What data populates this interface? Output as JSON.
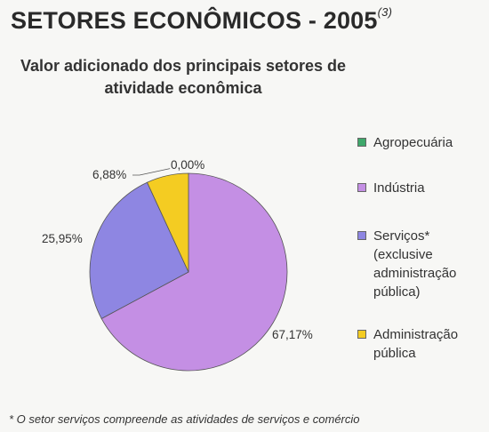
{
  "header": {
    "title": "SETORES ECONÔMICOS - 2005",
    "title_note": "(3)",
    "subtitle_line1": "Valor adicionado dos principais setores de",
    "subtitle_line2": "atividade econômica"
  },
  "chart_data": {
    "type": "pie",
    "categories": [
      "Agropecuária",
      "Indústria",
      "Serviços* (exclusive administração pública)",
      "Administração pública"
    ],
    "values": [
      0.0,
      67.17,
      25.95,
      6.88
    ],
    "labels": [
      "0,00%",
      "67,17%",
      "25,95%",
      "6,88%"
    ],
    "colors": [
      "#3fa86b",
      "#c48fe4",
      "#8e86e2",
      "#f4cc22"
    ],
    "legend_position": "right"
  },
  "legend": {
    "items": [
      {
        "lines": [
          "Agropecuária"
        ],
        "color": "#3fa86b"
      },
      {
        "lines": [
          "Indústria"
        ],
        "color": "#c48fe4"
      },
      {
        "lines": [
          "Serviços*",
          "(exclusive",
          "administração",
          "pública)"
        ],
        "color": "#8e86e2"
      },
      {
        "lines": [
          "Administração",
          "pública"
        ],
        "color": "#f4cc22"
      }
    ]
  },
  "footnote": "* O setor serviços compreende as atividades de serviços e comércio"
}
